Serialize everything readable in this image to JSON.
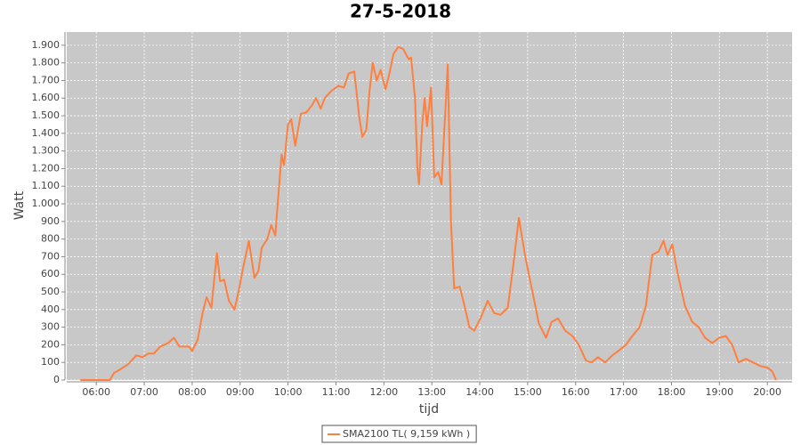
{
  "chart_data": {
    "type": "line",
    "title": "27-5-2018",
    "x_label": "tijd",
    "y_label": "Watt",
    "x": [
      "05:40",
      "06:17",
      "06:22",
      "06:30",
      "06:40",
      "06:50",
      "06:58",
      "07:05",
      "07:12",
      "07:20",
      "07:30",
      "07:37",
      "07:44",
      "07:56",
      "08:00",
      "08:07",
      "08:13",
      "08:18",
      "08:24",
      "08:31",
      "08:35",
      "08:40",
      "08:46",
      "08:53",
      "08:58",
      "09:03",
      "09:11",
      "09:18",
      "09:23",
      "09:27",
      "09:34",
      "09:39",
      "09:44",
      "09:47",
      "09:52",
      "09:55",
      "10:00",
      "10:04",
      "10:09",
      "10:16",
      "10:23",
      "10:30",
      "10:35",
      "10:41",
      "10:46",
      "10:54",
      "11:03",
      "11:10",
      "11:16",
      "11:23",
      "11:29",
      "11:33",
      "11:38",
      "11:42",
      "11:46",
      "11:51",
      "11:56",
      "12:02",
      "12:06",
      "12:12",
      "12:18",
      "12:24",
      "12:31",
      "12:34",
      "12:39",
      "12:42",
      "12:44",
      "12:48",
      "12:51",
      "12:54",
      "12:59",
      "13:03",
      "13:08",
      "13:12",
      "13:16",
      "13:20",
      "13:24",
      "13:28",
      "13:35",
      "13:41",
      "13:47",
      "13:53",
      "14:01",
      "14:10",
      "14:18",
      "14:26",
      "14:35",
      "14:42",
      "14:49",
      "14:57",
      "15:06",
      "15:14",
      "15:23",
      "15:30",
      "15:38",
      "15:47",
      "15:56",
      "16:04",
      "16:13",
      "16:20",
      "16:28",
      "16:37",
      "16:46",
      "16:55",
      "17:03",
      "17:11",
      "17:20",
      "17:28",
      "17:36",
      "17:44",
      "17:50",
      "17:55",
      "18:01",
      "18:08",
      "18:17",
      "18:26",
      "18:34",
      "18:42",
      "18:51",
      "19:00",
      "19:08",
      "19:16",
      "19:24",
      "19:33",
      "19:42",
      "19:51",
      "20:00",
      "20:06",
      "20:11"
    ],
    "series": [
      {
        "name": "SMA2100 TL( 9,159 kWh )",
        "color": "#ff7f3f",
        "values": [
          0,
          0,
          40,
          60,
          90,
          140,
          130,
          150,
          150,
          190,
          210,
          240,
          190,
          190,
          165,
          230,
          380,
          470,
          410,
          720,
          560,
          570,
          450,
          400,
          500,
          620,
          790,
          580,
          620,
          750,
          800,
          880,
          820,
          1000,
          1280,
          1220,
          1450,
          1480,
          1330,
          1510,
          1520,
          1560,
          1600,
          1540,
          1600,
          1640,
          1670,
          1660,
          1740,
          1750,
          1500,
          1380,
          1420,
          1640,
          1800,
          1700,
          1760,
          1650,
          1720,
          1850,
          1890,
          1880,
          1820,
          1830,
          1600,
          1200,
          1110,
          1450,
          1600,
          1440,
          1660,
          1150,
          1180,
          1110,
          1450,
          1790,
          900,
          520,
          530,
          420,
          300,
          280,
          350,
          450,
          380,
          370,
          410,
          650,
          920,
          700,
          500,
          320,
          240,
          330,
          350,
          280,
          250,
          200,
          110,
          100,
          130,
          100,
          140,
          170,
          200,
          250,
          300,
          420,
          710,
          730,
          790,
          710,
          770,
          600,
          420,
          330,
          300,
          240,
          210,
          240,
          250,
          200,
          100,
          120,
          100,
          80,
          70,
          50,
          0
        ]
      }
    ],
    "xlim": [
      "05:23",
      "20:31"
    ],
    "xticks": [
      "06:00",
      "07:00",
      "08:00",
      "09:00",
      "10:00",
      "11:00",
      "12:00",
      "13:00",
      "14:00",
      "15:00",
      "16:00",
      "17:00",
      "18:00",
      "19:00",
      "20:00"
    ],
    "ylim": [
      0,
      1975
    ],
    "yticks": [
      0,
      100,
      200,
      300,
      400,
      500,
      600,
      700,
      800,
      900,
      {
        "value": 1000,
        "label": "1.000"
      },
      {
        "value": 1100,
        "label": "1.100"
      },
      {
        "value": 1200,
        "label": "1.200"
      },
      {
        "value": 1300,
        "label": "1.300"
      },
      {
        "value": 1400,
        "label": "1.400"
      },
      {
        "value": 1500,
        "label": "1.500"
      },
      {
        "value": 1600,
        "label": "1.600"
      },
      {
        "value": 1700,
        "label": "1.700"
      },
      {
        "value": 1800,
        "label": "1.800"
      },
      {
        "value": 1900,
        "label": "1.900"
      }
    ],
    "grid": true,
    "legend": "bottom"
  }
}
